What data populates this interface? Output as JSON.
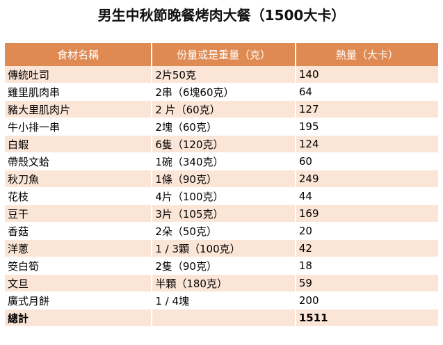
{
  "header": {
    "title": "男生中秋節晚餐烤肉大餐（1500大卡）"
  },
  "table": {
    "columns": [
      "食材名稱",
      "份量或是重量（克）",
      "熱量（大卡）"
    ],
    "rows": [
      [
        "傳統吐司",
        "2片50克",
        140
      ],
      [
        "雞里肌肉串",
        "2串（6塊60克）",
        64
      ],
      [
        "豬大里肌肉片",
        "2 片（60克）",
        127
      ],
      [
        "牛小排一串",
        "2塊（60克）",
        195
      ],
      [
        "白蝦",
        "6隻（120克）",
        124
      ],
      [
        "帶殼文蛤",
        "1碗（340克）",
        60
      ],
      [
        "秋刀魚",
        "1條（90克）",
        249
      ],
      [
        "花枝",
        "4片（100克）",
        44
      ],
      [
        "豆干",
        "3片（105克）",
        169
      ],
      [
        "香菇",
        "2朵（50克）",
        20
      ],
      [
        "洋蔥",
        "1 / 3顆（100克）",
        42
      ],
      [
        "筊白筍",
        "2隻（90克）",
        18
      ],
      [
        "文旦",
        "半顆（180克）",
        59
      ],
      [
        "廣式月餅",
        "1 / 4塊",
        200
      ]
    ],
    "total": {
      "label": "總計",
      "value": 1511
    }
  }
}
